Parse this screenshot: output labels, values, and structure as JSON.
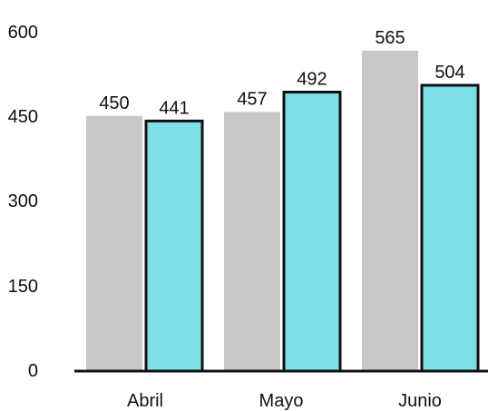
{
  "chart_data": {
    "type": "bar",
    "categories": [
      "Abril",
      "Mayo",
      "Junio"
    ],
    "series": [
      {
        "values": [
          450,
          457,
          565
        ],
        "color": "#c8c8c8",
        "outlined": false
      },
      {
        "values": [
          441,
          492,
          504
        ],
        "color": "#7ee0e6",
        "outlined": true
      }
    ],
    "data_labels": [
      [
        "450",
        "457",
        "565"
      ],
      [
        "441",
        "492",
        "504"
      ]
    ],
    "yticks": [
      "600",
      "450",
      "300",
      "150",
      "0"
    ],
    "ylim": [
      0,
      600
    ],
    "title": "",
    "xlabel": "",
    "ylabel": "",
    "grid": false,
    "legend": "none"
  }
}
